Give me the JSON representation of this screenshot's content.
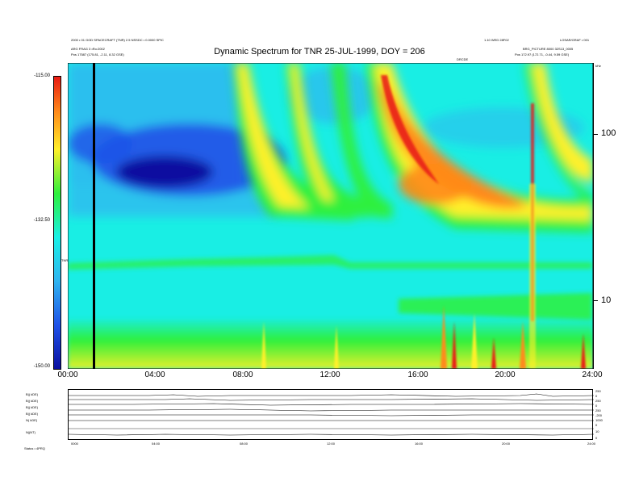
{
  "title": "Dynamic Spectrum for TNR 25-JUL-1999, DOY = 206",
  "header_left": {
    "line1": "2000 • 01 GOD SPACECRAFT (TNR) 2.5  NSSDC • 0.0000 SPIC",
    "line2": "ARG FRAG 3 •Ro:2002",
    "line3": "Pos     17587 (175.81, -2.11, 8.32 GSE)"
  },
  "header_right": {
    "line1": "1.10 WED 28F02",
    "line2": "LOSAR/GRAF • 001",
    "line3": "BRG_PICTURE 8000 32S13_0005",
    "line4": "Pos     172.97 (172.71, -0.44, 9.59 GSE)"
  },
  "mid_tag": "DRCDE",
  "right_tag": "kHz",
  "colorbar": {
    "top_label": "-115.00",
    "mid_label": "-132.50",
    "bottom_label": "-150.00",
    "units": "TNR",
    "colors": [
      "#0a10a0",
      "#1f52e8",
      "#2fb4f0",
      "#18f0e6",
      "#2ef03c",
      "#fff02a",
      "#ff8a1a",
      "#e81a14"
    ]
  },
  "time_axis": {
    "ticks": [
      "00:00",
      "04:00",
      "08:00",
      "12:00",
      "16:00",
      "20:00",
      "24:00"
    ]
  },
  "freq_axis": {
    "ticks": [
      "100",
      "10"
    ]
  },
  "lower_panels": {
    "labels": [
      "B|( kDE)",
      "B|( kDE)",
      "B|( kDE)",
      "B|( kDE)",
      "N( kDE)",
      "N|(NT)"
    ],
    "right_values": [
      "250",
      "0",
      "250",
      "0",
      "250",
      "-200",
      "1000",
      "0",
      "10",
      "0"
    ],
    "ticks": [
      "0000",
      "04:00",
      "08:00",
      "12:00",
      "16:00",
      "20:00",
      "24:00"
    ],
    "footer": "Status • 4PRQ"
  },
  "chart_data": {
    "type": "heatmap",
    "title": "Dynamic Spectrum for TNR 25-JUL-1999, DOY = 206",
    "x_range": [
      "00:00",
      "24:00"
    ],
    "x_ticks": [
      "00:00",
      "04:00",
      "08:00",
      "12:00",
      "16:00",
      "20:00",
      "24:00"
    ],
    "y_scale": "log",
    "y_ticks": [
      100,
      10
    ],
    "colorbar_range": [
      -150.0,
      -115.0
    ],
    "colorbar_ticks": [
      -115.0,
      -132.5,
      -150.0
    ],
    "features": [
      {
        "name": "",
        "start_hour": 1.2,
        "end_hour": 1.2,
        "kind": "data-gap"
      },
      {
        "name": "",
        "start_hour": 7.6,
        "f_start_khz": 200,
        "f_end_khz": 33,
        "level": -125
      },
      {
        "name": "",
        "start_hour": 9.9,
        "f_start_khz": 200,
        "f_end_khz": 32,
        "level": -126
      },
      {
        "name": "",
        "start_hour": 11.5,
        "f_start_khz": 200,
        "f_end_khz": 31,
        "level": -127
      },
      {
        "name": "",
        "start_hour": 14.0,
        "f_start_khz": 200,
        "f_end_khz": 28,
        "level": -117
      },
      {
        "name": "",
        "start_hour": 20.8,
        "f_start_khz": 200,
        "f_end_khz": 30,
        "level": -120
      }
    ]
  }
}
